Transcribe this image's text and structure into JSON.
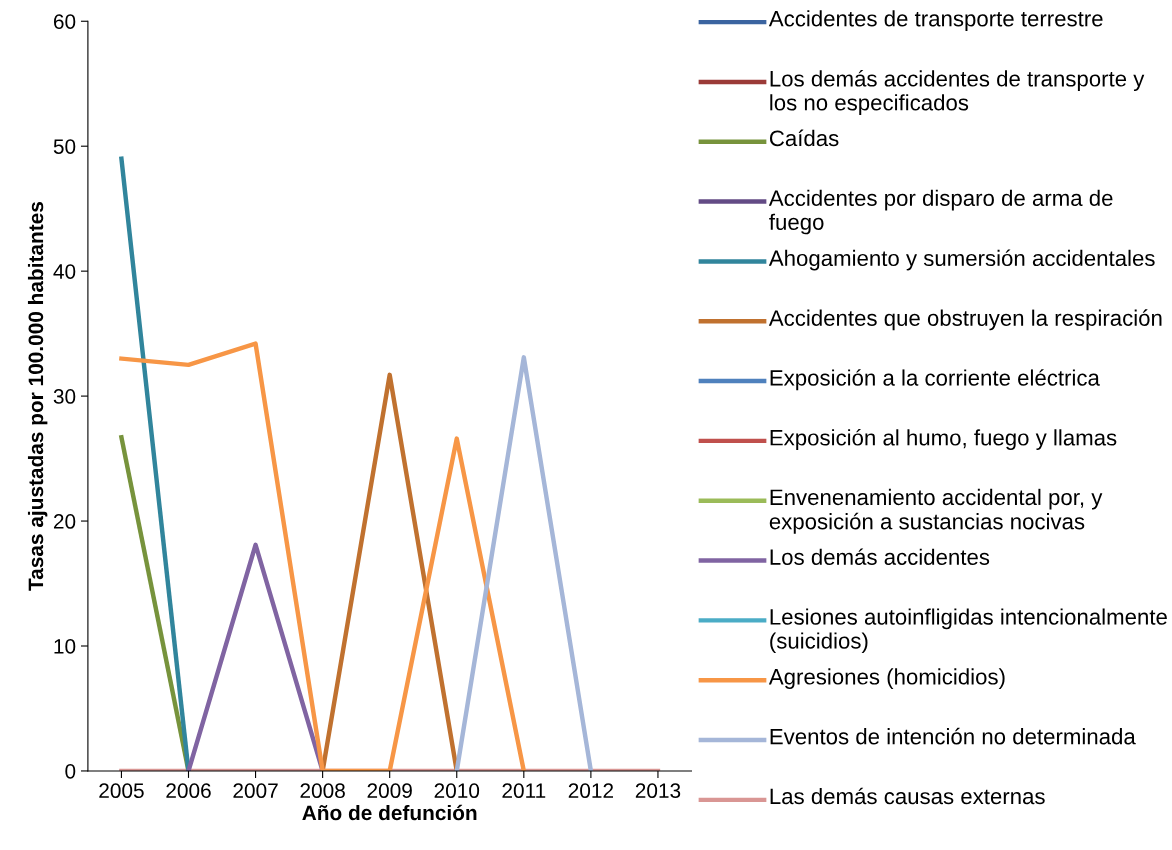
{
  "chart_data": {
    "type": "line",
    "xlabel": "Año de defunción",
    "ylabel": "Tasas ajustadas por 100.000 habitantes",
    "categories": [
      "2005",
      "2006",
      "2007",
      "2008",
      "2009",
      "2010",
      "2011",
      "2012",
      "2013"
    ],
    "ylim": [
      0,
      60
    ],
    "yticks": [
      0,
      10,
      20,
      30,
      40,
      50,
      60
    ],
    "grid": false,
    "legend": "right",
    "marker": "none",
    "line_style": "solid",
    "series": [
      {
        "name": "Accidentes de transporte terrestre",
        "color": "#3b64a0",
        "values": [
          null,
          null,
          null,
          null,
          null,
          null,
          null,
          null,
          null
        ]
      },
      {
        "name": "Los demás accidentes de transporte y los no especificados",
        "color": "#9b3b38",
        "values": [
          null,
          null,
          null,
          null,
          null,
          null,
          null,
          null,
          null
        ]
      },
      {
        "name": "Caídas",
        "color": "#77933c",
        "values": [
          26.7,
          0,
          null,
          null,
          null,
          null,
          null,
          null,
          null
        ]
      },
      {
        "name": "Accidentes por disparo de arma de fuego",
        "color": "#634b85",
        "values": [
          null,
          null,
          null,
          null,
          null,
          null,
          null,
          null,
          null
        ]
      },
      {
        "name": "Ahogamiento y sumersión accidentales",
        "color": "#31859c",
        "values": [
          49.0,
          0,
          null,
          null,
          null,
          null,
          null,
          null,
          null
        ]
      },
      {
        "name": "Accidentes que obstruyen la respiración",
        "color": "#c0712f",
        "values": [
          null,
          null,
          null,
          0,
          31.7,
          0,
          null,
          null,
          null
        ]
      },
      {
        "name": "Exposición a la corriente eléctrica",
        "color": "#4f81bd",
        "values": [
          null,
          null,
          null,
          null,
          null,
          null,
          null,
          null,
          null
        ]
      },
      {
        "name": "Exposición al humo, fuego y llamas",
        "color": "#c0504d",
        "values": [
          null,
          null,
          null,
          null,
          null,
          null,
          null,
          null,
          null
        ]
      },
      {
        "name": "Envenenamiento accidental por, y exposición a sustancias nocivas",
        "color": "#9bbb59",
        "values": [
          null,
          null,
          null,
          null,
          null,
          null,
          null,
          null,
          null
        ]
      },
      {
        "name": "Los demás accidentes",
        "color": "#8064a2",
        "values": [
          null,
          0,
          18.1,
          0,
          null,
          null,
          null,
          null,
          null
        ]
      },
      {
        "name": "Lesiones autoinfligidas intencionalmente (suicidios)",
        "color": "#4bacc6",
        "values": [
          null,
          null,
          null,
          null,
          null,
          null,
          null,
          null,
          null
        ]
      },
      {
        "name": "Agresiones (homicidios)",
        "color": "#f79646",
        "values": [
          33.0,
          32.5,
          34.2,
          0,
          0,
          26.6,
          0,
          null,
          null
        ]
      },
      {
        "name": "Eventos de intención no determinada",
        "color": "#a5b6d8",
        "values": [
          null,
          null,
          null,
          null,
          null,
          0,
          33.1,
          0,
          null
        ]
      },
      {
        "name": "Las demás causas externas",
        "color": "#d99694",
        "values": [
          0,
          0,
          0,
          0,
          0,
          0,
          0,
          0,
          0
        ]
      }
    ]
  }
}
